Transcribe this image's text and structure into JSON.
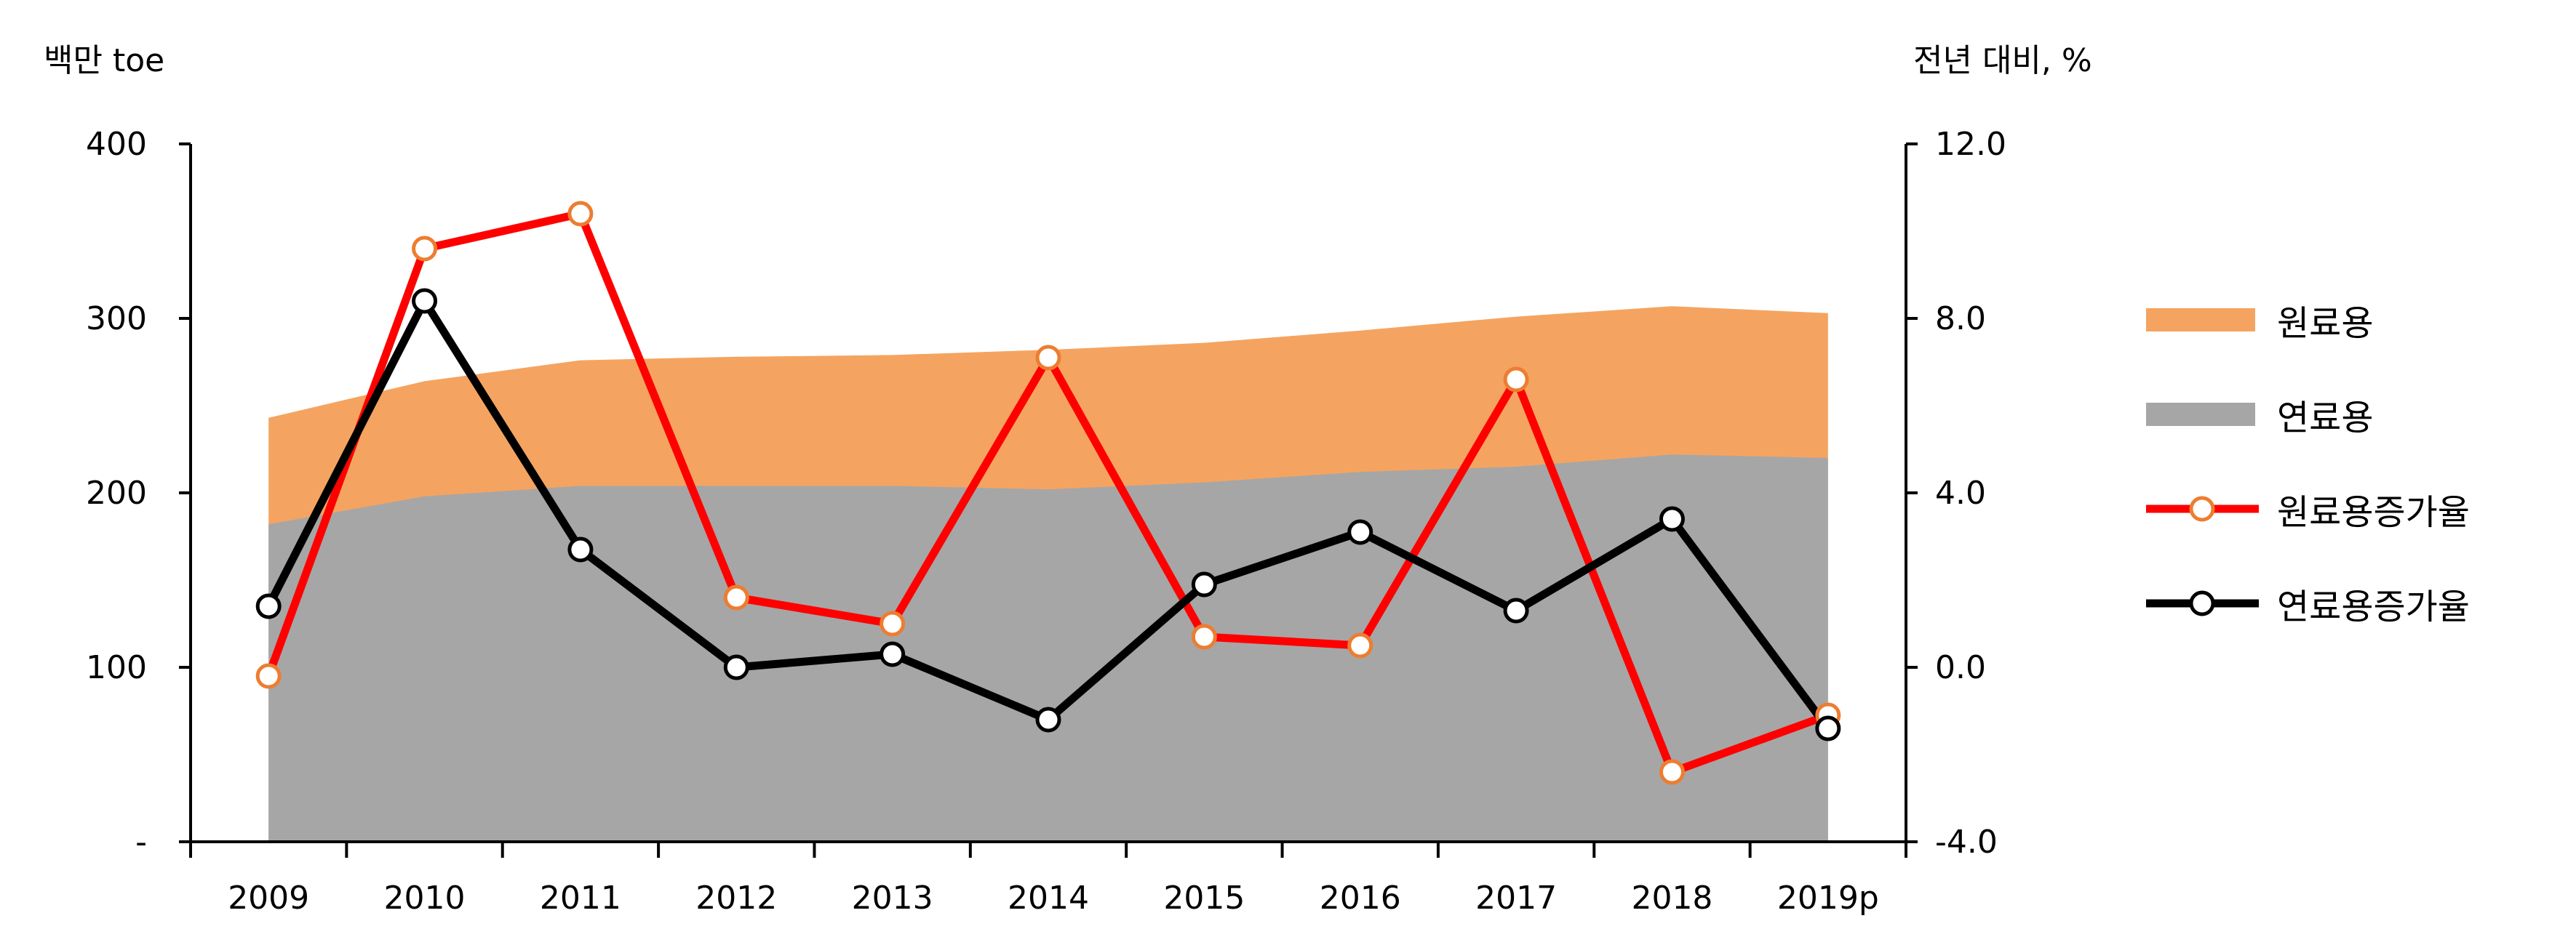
{
  "chart_data": {
    "type": "area+line",
    "categories": [
      "2009",
      "2010",
      "2011",
      "2012",
      "2013",
      "2014",
      "2015",
      "2016",
      "2017",
      "2018",
      "2019p"
    ],
    "left_axis": {
      "unit_label": "백만 toe",
      "ylim": [
        0,
        400
      ],
      "ticks": [
        "-",
        "100",
        "200",
        "300",
        "400"
      ]
    },
    "right_axis": {
      "unit_label": "전년 대비, %",
      "ylim": [
        -4.0,
        12.0
      ],
      "ticks": [
        "-4.0",
        "0.0",
        "4.0",
        "8.0",
        "12.0"
      ]
    },
    "area_series": [
      {
        "name": "연료용",
        "color": "#A6A6A6",
        "axis": "left",
        "values": [
          182,
          198,
          204,
          204,
          204,
          202,
          206,
          212,
          215,
          222,
          220
        ]
      },
      {
        "name": "원료용",
        "color": "#F4A460",
        "axis": "left",
        "values": [
          243,
          264,
          276,
          278,
          279,
          282,
          286,
          293,
          301,
          307,
          303
        ]
      }
    ],
    "line_series": [
      {
        "name": "원료용증가율",
        "line_color": "#FF0000",
        "marker_edge": "#ED7D31",
        "axis": "right",
        "values": [
          -0.2,
          9.6,
          10.4,
          1.6,
          1.0,
          7.1,
          0.7,
          0.5,
          6.6,
          -2.4,
          -1.1
        ]
      },
      {
        "name": "연료용증가율",
        "line_color": "#000000",
        "marker_edge": "#000000",
        "axis": "right",
        "values": [
          1.4,
          8.4,
          2.7,
          0.0,
          0.3,
          -1.2,
          1.9,
          3.1,
          1.3,
          3.4,
          -1.4
        ]
      }
    ],
    "legend_position": "right",
    "grid": false
  }
}
